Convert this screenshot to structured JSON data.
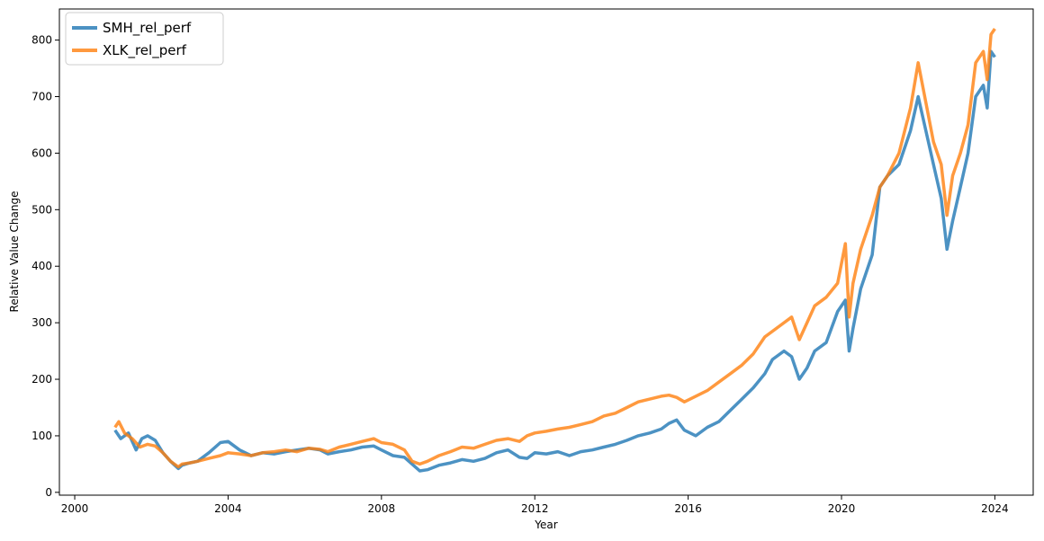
{
  "chart_data": {
    "type": "line",
    "title": "",
    "xlabel": "Year",
    "ylabel": "Relative Value Change",
    "xlim": [
      1999.6,
      2025.0
    ],
    "ylim": [
      -5,
      855
    ],
    "x_ticks": [
      2000,
      2004,
      2008,
      2012,
      2016,
      2020,
      2024
    ],
    "x_tick_labels": [
      "2000",
      "2004",
      "2008",
      "2012",
      "2016",
      "2020",
      "2024"
    ],
    "y_ticks": [
      0,
      100,
      200,
      300,
      400,
      500,
      600,
      700,
      800
    ],
    "y_tick_labels": [
      "0",
      "100",
      "200",
      "300",
      "400",
      "500",
      "600",
      "700",
      "800"
    ],
    "grid": false,
    "legend_position": "top-left",
    "series": [
      {
        "name": "SMH_rel_perf",
        "color": "#1f77b4",
        "x": [
          2001.05,
          2001.2,
          2001.4,
          2001.6,
          2001.75,
          2001.9,
          2002.1,
          2002.3,
          2002.5,
          2002.7,
          2002.8,
          2003.0,
          2003.2,
          2003.5,
          2003.8,
          2004.0,
          2004.3,
          2004.6,
          2004.9,
          2005.2,
          2005.5,
          2005.8,
          2006.1,
          2006.4,
          2006.6,
          2006.9,
          2007.2,
          2007.5,
          2007.8,
          2008.0,
          2008.3,
          2008.6,
          2008.8,
          2009.0,
          2009.2,
          2009.5,
          2009.8,
          2010.1,
          2010.4,
          2010.7,
          2011.0,
          2011.3,
          2011.6,
          2011.8,
          2012.0,
          2012.3,
          2012.6,
          2012.9,
          2013.2,
          2013.5,
          2013.8,
          2014.1,
          2014.4,
          2014.7,
          2015.0,
          2015.3,
          2015.5,
          2015.7,
          2015.9,
          2016.2,
          2016.5,
          2016.8,
          2017.1,
          2017.4,
          2017.7,
          2018.0,
          2018.2,
          2018.5,
          2018.7,
          2018.9,
          2019.1,
          2019.3,
          2019.6,
          2019.9,
          2020.1,
          2020.2,
          2020.3,
          2020.5,
          2020.8,
          2021.0,
          2021.2,
          2021.5,
          2021.8,
          2022.0,
          2022.2,
          2022.4,
          2022.6,
          2022.75,
          2022.9,
          2023.1,
          2023.3,
          2023.5,
          2023.7,
          2023.8,
          2023.9,
          2024.0
        ],
        "y": [
          110,
          95,
          105,
          75,
          95,
          100,
          92,
          70,
          55,
          42,
          48,
          52,
          55,
          70,
          88,
          90,
          75,
          65,
          70,
          68,
          72,
          75,
          78,
          75,
          68,
          72,
          75,
          80,
          82,
          75,
          65,
          62,
          50,
          38,
          40,
          48,
          52,
          58,
          55,
          60,
          70,
          75,
          62,
          60,
          70,
          68,
          72,
          65,
          72,
          75,
          80,
          85,
          92,
          100,
          105,
          112,
          122,
          128,
          110,
          100,
          115,
          125,
          145,
          165,
          185,
          210,
          235,
          250,
          240,
          200,
          220,
          250,
          265,
          320,
          340,
          250,
          290,
          360,
          420,
          540,
          560,
          580,
          640,
          700,
          640,
          580,
          520,
          430,
          480,
          540,
          600,
          700,
          720,
          680,
          780,
          770
        ]
      },
      {
        "name": "XLK_rel_perf",
        "color": "#ff7f0e",
        "x": [
          2001.05,
          2001.15,
          2001.3,
          2001.5,
          2001.7,
          2001.9,
          2002.1,
          2002.3,
          2002.5,
          2002.7,
          2002.8,
          2003.0,
          2003.2,
          2003.5,
          2003.8,
          2004.0,
          2004.3,
          2004.6,
          2004.9,
          2005.2,
          2005.5,
          2005.8,
          2006.1,
          2006.4,
          2006.6,
          2006.9,
          2007.2,
          2007.5,
          2007.8,
          2008.0,
          2008.3,
          2008.6,
          2008.8,
          2009.0,
          2009.2,
          2009.5,
          2009.8,
          2010.1,
          2010.4,
          2010.7,
          2011.0,
          2011.3,
          2011.6,
          2011.8,
          2012.0,
          2012.3,
          2012.6,
          2012.9,
          2013.2,
          2013.5,
          2013.8,
          2014.1,
          2014.4,
          2014.7,
          2015.0,
          2015.3,
          2015.5,
          2015.7,
          2015.9,
          2016.2,
          2016.5,
          2016.8,
          2017.1,
          2017.4,
          2017.7,
          2018.0,
          2018.2,
          2018.5,
          2018.7,
          2018.9,
          2019.1,
          2019.3,
          2019.6,
          2019.9,
          2020.1,
          2020.2,
          2020.3,
          2020.5,
          2020.8,
          2021.0,
          2021.2,
          2021.5,
          2021.8,
          2022.0,
          2022.2,
          2022.4,
          2022.6,
          2022.75,
          2022.9,
          2023.1,
          2023.3,
          2023.5,
          2023.7,
          2023.8,
          2023.9,
          2024.0
        ],
        "y": [
          115,
          125,
          105,
          95,
          80,
          85,
          82,
          70,
          55,
          45,
          50,
          52,
          55,
          60,
          65,
          70,
          68,
          65,
          70,
          72,
          75,
          72,
          78,
          76,
          72,
          80,
          85,
          90,
          95,
          88,
          85,
          75,
          55,
          50,
          55,
          65,
          72,
          80,
          78,
          85,
          92,
          95,
          90,
          100,
          105,
          108,
          112,
          115,
          120,
          125,
          135,
          140,
          150,
          160,
          165,
          170,
          172,
          168,
          160,
          170,
          180,
          195,
          210,
          225,
          245,
          275,
          285,
          300,
          310,
          270,
          300,
          330,
          345,
          370,
          440,
          310,
          370,
          430,
          490,
          540,
          560,
          600,
          680,
          760,
          690,
          620,
          580,
          490,
          560,
          600,
          650,
          760,
          780,
          730,
          810,
          820
        ]
      }
    ]
  }
}
